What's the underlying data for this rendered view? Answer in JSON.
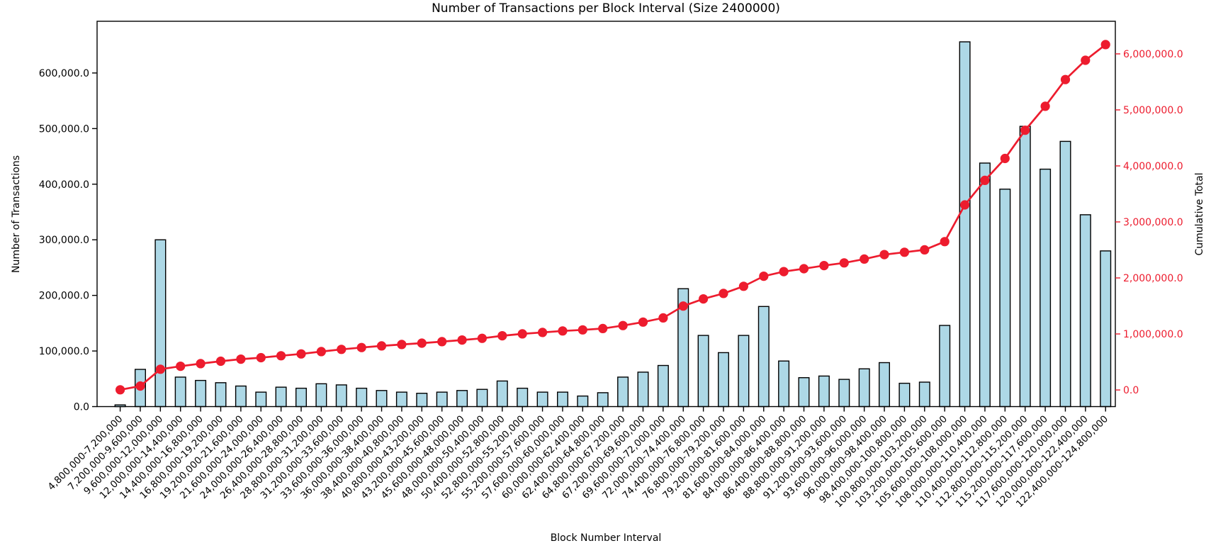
{
  "chart_data": {
    "type": "bar",
    "title": "Number of Transactions per Block Interval (Size 2400000)",
    "xlabel": "Block Number Interval",
    "ylabel": "Number of Transactions",
    "y2label": "Cumulative Total",
    "legend_position": "none",
    "grid": false,
    "colors": {
      "bar_fill": "#add8e6",
      "bar_edge": "#000000",
      "line_color": "#ed1c2e",
      "axis_color": "#000000",
      "right_axis_text_color": "#ed1c2e"
    },
    "categories": [
      "4,800,000-7,200,000",
      "7,200,000-9,600,000",
      "9,600,000-12,000,000",
      "12,000,000-14,400,000",
      "14,400,000-16,800,000",
      "16,800,000-19,200,000",
      "19,200,000-21,600,000",
      "21,600,000-24,000,000",
      "24,000,000-26,400,000",
      "26,400,000-28,800,000",
      "28,800,000-31,200,000",
      "31,200,000-33,600,000",
      "33,600,000-36,000,000",
      "36,000,000-38,400,000",
      "38,400,000-40,800,000",
      "40,800,000-43,200,000",
      "43,200,000-45,600,000",
      "45,600,000-48,000,000",
      "48,000,000-50,400,000",
      "50,400,000-52,800,000",
      "52,800,000-55,200,000",
      "55,200,000-57,600,000",
      "57,600,000-60,000,000",
      "60,000,000-62,400,000",
      "62,400,000-64,800,000",
      "64,800,000-67,200,000",
      "67,200,000-69,600,000",
      "69,600,000-72,000,000",
      "72,000,000-74,400,000",
      "74,400,000-76,800,000",
      "76,800,000-79,200,000",
      "79,200,000-81,600,000",
      "81,600,000-84,000,000",
      "84,000,000-86,400,000",
      "86,400,000-88,800,000",
      "88,800,000-91,200,000",
      "91,200,000-93,600,000",
      "93,600,000-96,000,000",
      "96,000,000-98,400,000",
      "98,400,000-100,800,000",
      "100,800,000-103,200,000",
      "103,200,000-105,600,000",
      "105,600,000-108,000,000",
      "108,000,000-110,400,000",
      "110,400,000-112,800,000",
      "112,800,000-115,200,000",
      "115,200,000-117,600,000",
      "117,600,000-120,000,000",
      "120,000,000-122,400,000",
      "122,400,000-124,800,000"
    ],
    "series": [
      {
        "name": "Number of Transactions",
        "axis": "left",
        "values": [
          3000,
          67000,
          300000,
          53000,
          47000,
          43000,
          37000,
          26000,
          35000,
          33000,
          41000,
          39000,
          33000,
          29000,
          26000,
          24000,
          26000,
          29000,
          31000,
          46000,
          33000,
          26000,
          26000,
          19000,
          25000,
          53000,
          62000,
          74000,
          212000,
          128000,
          97000,
          128000,
          180000,
          82000,
          52000,
          55000,
          49000,
          68000,
          79000,
          42000,
          44000,
          146000,
          656000,
          438000,
          391000,
          504000,
          427000,
          477000,
          345000,
          280000
        ]
      },
      {
        "name": "Cumulative Total",
        "axis": "right",
        "values": [
          3000,
          70000,
          370000,
          423000,
          470000,
          513000,
          550000,
          576000,
          611000,
          644000,
          685000,
          724000,
          757000,
          786000,
          812000,
          836000,
          862000,
          891000,
          922000,
          968000,
          1001000,
          1027000,
          1053000,
          1072000,
          1097000,
          1150000,
          1212000,
          1286000,
          1498000,
          1626000,
          1723000,
          1851000,
          2031000,
          2113000,
          2165000,
          2220000,
          2269000,
          2337000,
          2416000,
          2458000,
          2502000,
          2648000,
          3304000,
          3742000,
          4133000,
          4637000,
          5064000,
          5541000,
          5886000,
          6166000
        ]
      }
    ],
    "y_left": {
      "min": 0,
      "max": 693000,
      "tick_values": [
        0,
        100000,
        200000,
        300000,
        400000,
        500000,
        600000
      ],
      "tick_labels": [
        "0.0",
        "100,000.0",
        "200,000.0",
        "300,000.0",
        "400,000.0",
        "500,000.0",
        "600,000.0"
      ]
    },
    "y_right": {
      "min": -297000,
      "max": 6582000,
      "tick_values": [
        0,
        1000000,
        2000000,
        3000000,
        4000000,
        5000000,
        6000000
      ],
      "tick_labels": [
        "0.0",
        "1,000,000.0",
        "2,000,000.0",
        "3,000,000.0",
        "4,000,000.0",
        "5,000,000.0",
        "6,000,000.0"
      ]
    }
  }
}
